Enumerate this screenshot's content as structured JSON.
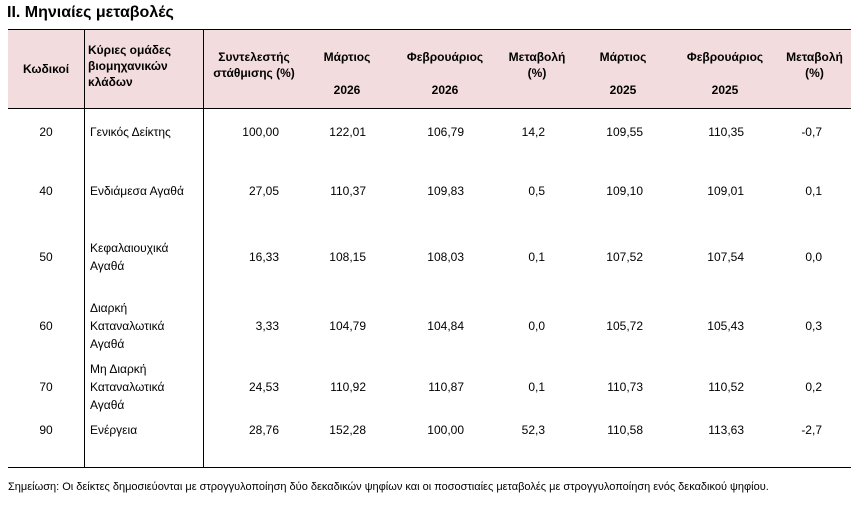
{
  "title": "ΙΙ. Μηνιαίες μεταβολές",
  "header": {
    "code": "Κωδικοί",
    "groups": [
      "Κύριες ομάδες",
      "βιομηχανικών",
      "κλάδων"
    ],
    "weight": [
      "Συντελεστής",
      "στάθμισης (%)"
    ],
    "month_a": "Μάρτιος",
    "month_b": "Φεβρουάριος",
    "change": [
      "Μεταβολή",
      "(%)"
    ],
    "year_2026": "2026",
    "year_2025": "2025"
  },
  "rows": [
    {
      "code": "20",
      "name": [
        "Γενικός Δείκτης"
      ],
      "weight": "100,00",
      "mar26": "122,01",
      "feb26": "106,79",
      "chg26": "14,2",
      "mar25": "109,55",
      "feb25": "110,35",
      "chg25": "-0,7"
    },
    {
      "code": "40",
      "name": [
        "Ενδιάμεσα Αγαθά"
      ],
      "weight": "27,05",
      "mar26": "110,37",
      "feb26": "109,83",
      "chg26": "0,5",
      "mar25": "109,10",
      "feb25": "109,01",
      "chg25": "0,1"
    },
    {
      "code": "50",
      "name": [
        "Κεφαλαιουχικά",
        "Αγαθά"
      ],
      "weight": "16,33",
      "mar26": "108,15",
      "feb26": "108,03",
      "chg26": "0,1",
      "mar25": "107,52",
      "feb25": "107,54",
      "chg25": "0,0"
    },
    {
      "code": "60",
      "name": [
        "Διαρκή",
        "Καταναλωτικά",
        "Αγαθά"
      ],
      "weight": "3,33",
      "mar26": "104,79",
      "feb26": "104,84",
      "chg26": "0,0",
      "mar25": "105,72",
      "feb25": "105,43",
      "chg25": "0,3"
    },
    {
      "code": "70",
      "name": [
        "Μη Διαρκή",
        "Καταναλωτικά",
        "Αγαθά"
      ],
      "weight": "24,53",
      "mar26": "110,92",
      "feb26": "110,87",
      "chg26": "0,1",
      "mar25": "110,73",
      "feb25": "110,52",
      "chg25": "0,2"
    },
    {
      "code": "90",
      "name": [
        "Ενέργεια"
      ],
      "weight": "28,76",
      "mar26": "152,28",
      "feb26": "100,00",
      "chg26": "52,3",
      "mar25": "110,58",
      "feb25": "113,63",
      "chg25": "-2,7"
    }
  ],
  "note": "Σημείωση: Οι δείκτες δημοσιεύονται με στρογγυλοποίηση δύο δεκαδικών ψηφίων και οι ποσοστιαίες μεταβολές με στρογγυλοποίηση ενός δεκαδικού ψηφίου."
}
